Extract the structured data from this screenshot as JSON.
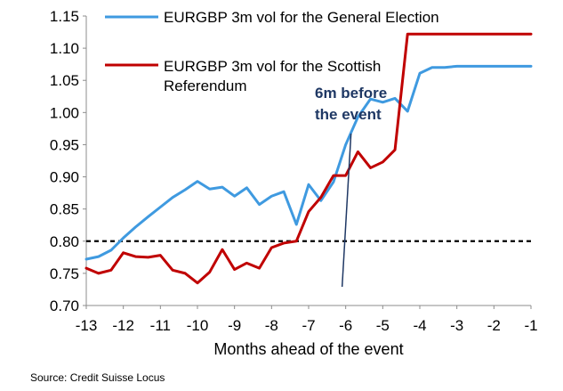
{
  "chart_data": {
    "type": "line",
    "xlabel": "Months ahead of the event",
    "ylabel": "",
    "xlim": [
      -13,
      -1
    ],
    "ylim": [
      0.7,
      1.15
    ],
    "xticks": [
      -13,
      -12,
      -11,
      -10,
      -9,
      -8,
      -7,
      -6,
      -5,
      -4,
      -3,
      -2,
      -1
    ],
    "yticks": [
      0.7,
      0.75,
      0.8,
      0.85,
      0.9,
      0.95,
      1.0,
      1.05,
      1.1,
      1.15
    ],
    "series": [
      {
        "name": "EURGBP 3m vol for the General Election",
        "color": "#3f9ae0",
        "x": [
          -13,
          -12.67,
          -12.33,
          -12,
          -11.67,
          -11.33,
          -11,
          -10.67,
          -10.33,
          -10,
          -9.67,
          -9.33,
          -9,
          -8.67,
          -8.33,
          -8,
          -7.67,
          -7.33,
          -7,
          -6.67,
          -6.33,
          -6,
          -5.67,
          -5.33,
          -5,
          -4.67,
          -4.33,
          -4,
          -3.67,
          -3.33,
          -3,
          -2.67,
          -2.33,
          -2,
          -1.67,
          -1.33,
          -1
        ],
        "values": [
          0.772,
          0.776,
          0.786,
          0.805,
          0.822,
          0.838,
          0.853,
          0.868,
          0.88,
          0.893,
          0.881,
          0.884,
          0.87,
          0.883,
          0.857,
          0.87,
          0.877,
          0.826,
          0.888,
          0.863,
          0.892,
          0.95,
          0.993,
          1.021,
          1.016,
          1.022,
          1.002,
          1.061,
          1.07,
          1.07,
          1.072,
          1.072,
          1.072,
          1.072,
          1.072,
          1.072,
          1.072
        ]
      },
      {
        "name": "EURGBP 3m vol for the Scottish Referendum",
        "color": "#c00000",
        "x": [
          -13,
          -12.67,
          -12.33,
          -12,
          -11.67,
          -11.33,
          -11,
          -10.67,
          -10.33,
          -10,
          -9.67,
          -9.33,
          -9,
          -8.67,
          -8.33,
          -8,
          -7.67,
          -7.33,
          -7,
          -6.67,
          -6.33,
          -6,
          -5.67,
          -5.33,
          -5,
          -4.67,
          -4.33,
          -4,
          -3.67,
          -3.33,
          -3,
          -2.67,
          -2.33,
          -2,
          -1.67,
          -1.33,
          -1
        ],
        "values": [
          0.758,
          0.75,
          0.755,
          0.782,
          0.776,
          0.775,
          0.778,
          0.755,
          0.75,
          0.735,
          0.752,
          0.787,
          0.756,
          0.766,
          0.758,
          0.79,
          0.797,
          0.8,
          0.846,
          0.868,
          0.902,
          0.902,
          0.939,
          0.914,
          0.923,
          0.942,
          1.122,
          1.122,
          1.122,
          1.122,
          1.122,
          1.122,
          1.122,
          1.122,
          1.122,
          1.122,
          1.122
        ]
      }
    ],
    "reference_lines": [
      {
        "type": "horizontal",
        "y": 0.8,
        "style": "dashed",
        "color": "#000000"
      }
    ],
    "annotations": [
      {
        "text_lines": [
          "6m before",
          "the event"
        ],
        "x": -6,
        "color": "#1f3864"
      }
    ],
    "legend_labels": {
      "general_election": "EURGBP 3m vol for the General Election",
      "scottish_line1": "EURGBP 3m vol for the Scottish",
      "scottish_line2": "Referendum"
    },
    "legend_placement": "top-left",
    "source": "Source: Credit Suisse Locus"
  }
}
